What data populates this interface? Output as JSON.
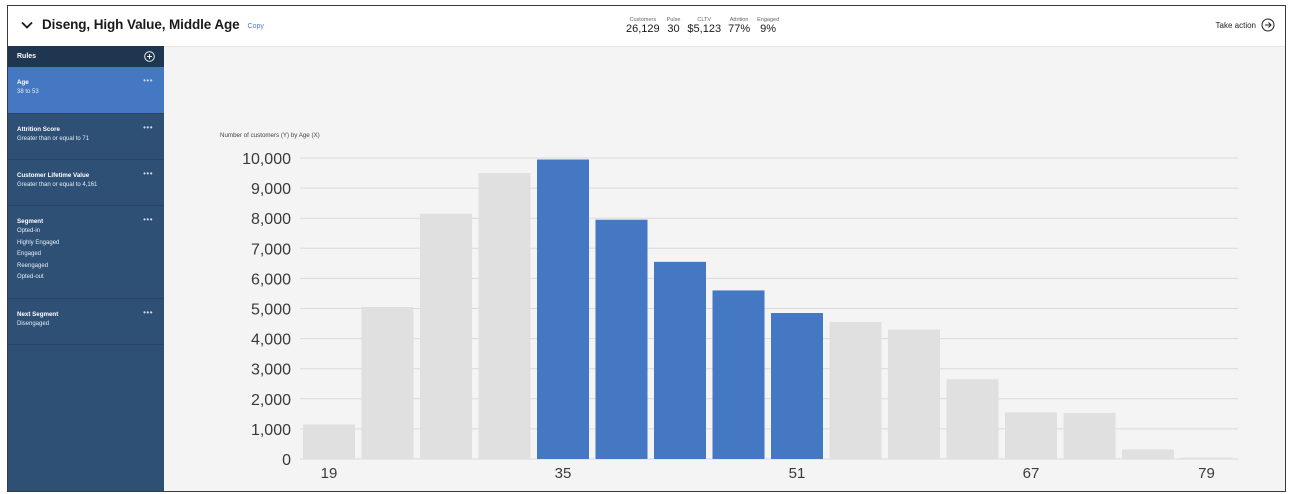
{
  "header": {
    "segment_title": "Diseng, High Value, Middle Age",
    "copy_label": "Copy",
    "stats": [
      {
        "label": "Customers",
        "value": "26,129"
      },
      {
        "label": "Pulse",
        "value": "30"
      },
      {
        "label": "CLTV",
        "value": "$5,123"
      },
      {
        "label": "Attrition",
        "value": "77%"
      },
      {
        "label": "Engaged",
        "value": "9%"
      }
    ],
    "take_action_label": "Take action"
  },
  "sidebar": {
    "title": "Rules",
    "rules": [
      {
        "name": "Age",
        "lines": [
          "38 to 53"
        ],
        "active": true
      },
      {
        "name": "Attrition Score",
        "lines": [
          "Greater than or equal to 71"
        ],
        "active": false
      },
      {
        "name": "Customer Lifetime Value",
        "lines": [
          "Greater than or equal to 4,161"
        ],
        "active": false
      },
      {
        "name": "Segment",
        "lines": [
          "Opted-in",
          "Highly Engaged",
          "Engaged",
          "Reengaged",
          "Opted-out"
        ],
        "active": false
      },
      {
        "name": "Next Segment",
        "lines": [
          "Disengaged"
        ],
        "active": false
      }
    ]
  },
  "colors": {
    "accent": "#4478c2",
    "sidebar": "#2e5075",
    "sidebar_header": "#1e3650",
    "bar_inactive": "#e0e0e0"
  },
  "chart_data": {
    "type": "bar",
    "title": "Number of customers (Y) by Age (X)",
    "x_tick_labels": [
      "19",
      "35",
      "51",
      "67",
      "79"
    ],
    "y_ticks": [
      0,
      1000,
      2000,
      3000,
      4000,
      5000,
      6000,
      7000,
      8000,
      9000,
      10000
    ],
    "y_tick_labels": [
      "0",
      "1,000",
      "2,000",
      "3,000",
      "4,000",
      "5,000",
      "6,000",
      "7,000",
      "8,000",
      "9,000",
      "10,000"
    ],
    "ylim": [
      0,
      10000
    ],
    "grid": true,
    "values": [
      1150,
      5050,
      8150,
      9500,
      9950,
      7950,
      6550,
      5600,
      4850,
      4550,
      4300,
      2650,
      1550,
      1530,
      320,
      50
    ],
    "highlighted": [
      false,
      false,
      false,
      false,
      true,
      true,
      true,
      true,
      true,
      false,
      false,
      false,
      false,
      false,
      false,
      false
    ]
  }
}
